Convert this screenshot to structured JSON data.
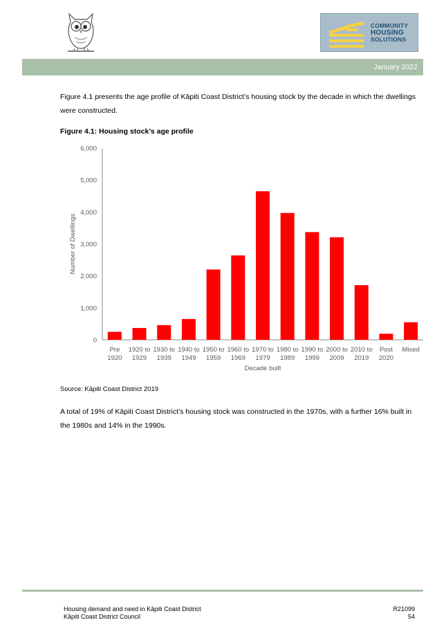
{
  "header": {
    "logo_left_icon": "owl-icon",
    "logo_right_lines": [
      "COMMUNITY",
      "HOUSING",
      "SOLUTIONS"
    ],
    "date": "January 2022"
  },
  "body": {
    "intro": "Figure 4.1 presents the age profile of Kāpiti Coast District’s housing stock by the decade in which the dwellings were constructed.",
    "figure_title": "Figure 4.1:  Housing stock’s age profile",
    "source": "Source:  Kāpiti Coast District 2019",
    "summary": "A total of 19% of Kāpiti Coast District’s housing stock was constructed in the 1970s, with a further 16% built in the 1980s and 14% in the 1990s."
  },
  "chart_data": {
    "type": "bar",
    "categories": [
      [
        "Pre",
        "1920"
      ],
      [
        "1920 to",
        "1929"
      ],
      [
        "1930 to",
        "1939"
      ],
      [
        "1940 to",
        "1949"
      ],
      [
        "1950 to",
        "1959"
      ],
      [
        "1960 to",
        "1969"
      ],
      [
        "1970 to",
        "1979"
      ],
      [
        "1980 to",
        "1989"
      ],
      [
        "1990 to",
        "1999"
      ],
      [
        "2000 to",
        "2009"
      ],
      [
        "2010 to",
        "2019"
      ],
      [
        "Post",
        "2020"
      ],
      [
        "Mixed"
      ]
    ],
    "values": [
      250,
      370,
      460,
      650,
      2200,
      2640,
      4650,
      3970,
      3370,
      3210,
      1710,
      190,
      550
    ],
    "ylabel": "Number of Dwellings",
    "xlabel": "Decade built",
    "ylim": [
      0,
      6000
    ],
    "yticks": [
      "0",
      "1,000",
      "2,000",
      "3,000",
      "4,000",
      "5,000",
      "6,000"
    ],
    "bar_color": "#ff0000",
    "grid": false
  },
  "footer": {
    "left_line1": "Housing demand and need in Kāpiti Coast District",
    "left_line2": "Kāpiti Coast District Council",
    "right_line1": "R21099",
    "right_line2": "54"
  }
}
